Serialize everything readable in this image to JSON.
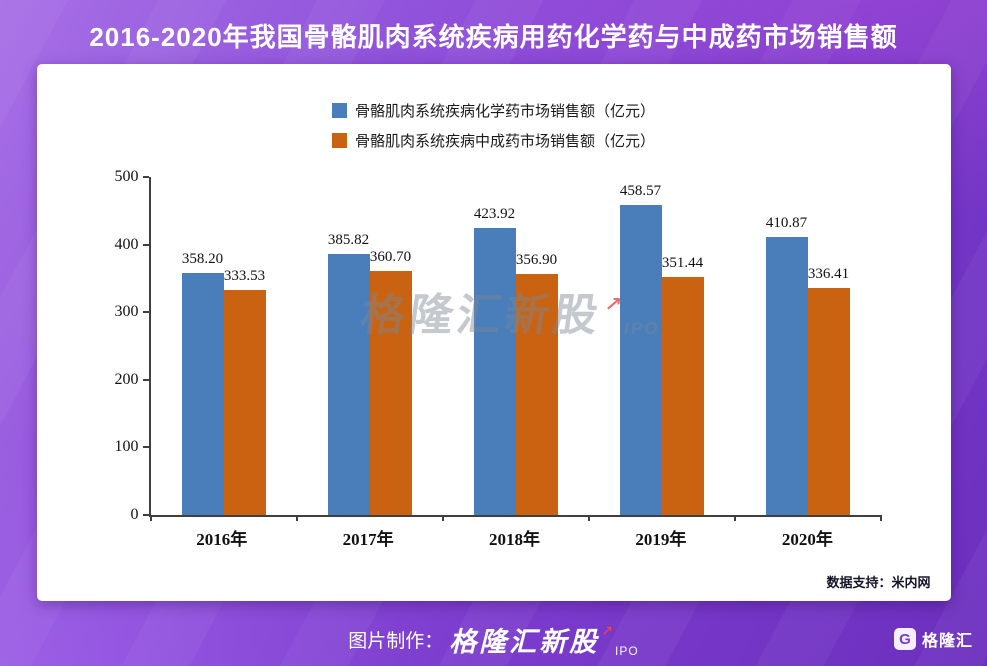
{
  "title": "2016-2020年我国骨骼肌肉系统疾病用药化学药与中成药市场销售额",
  "chart_data": {
    "type": "bar",
    "categories": [
      "2016年",
      "2017年",
      "2018年",
      "2019年",
      "2020年"
    ],
    "series": [
      {
        "name": "骨骼肌肉系统疾病化学药市场销售额（亿元）",
        "color": "#4a7ebb",
        "values": [
          358.2,
          385.82,
          423.92,
          458.57,
          410.87
        ]
      },
      {
        "name": "骨骼肌肉系统疾病中成药市场销售额（亿元）",
        "color": "#c96312",
        "values": [
          333.53,
          360.7,
          356.9,
          351.44,
          336.41
        ]
      }
    ],
    "ylim": [
      0,
      500
    ],
    "yticks": [
      0,
      100,
      200,
      300,
      400,
      500
    ],
    "legend_position": "top",
    "grid": false,
    "value_label_decimals": 2
  },
  "watermark": {
    "text": "格隆汇新股",
    "arrow": "↗",
    "suffix": "IPO"
  },
  "data_support": "数据支持：米内网",
  "footer": {
    "made_label": "图片制作：",
    "brand": "格隆汇新股",
    "brand_arrow": "↗",
    "brand_suffix": "IPO",
    "logo_letter": "G",
    "logo_text": "格隆汇"
  }
}
